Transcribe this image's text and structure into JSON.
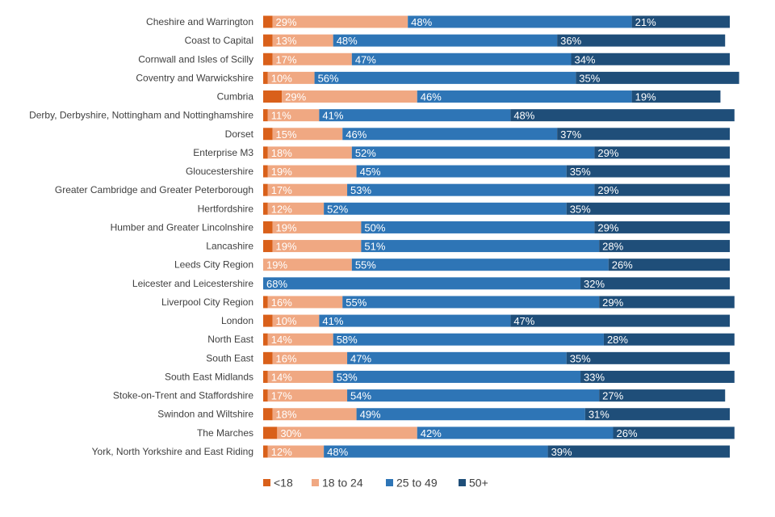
{
  "chart_data": {
    "type": "bar",
    "orientation": "horizontal",
    "stacked": "percent",
    "title": "",
    "xlabel": "",
    "ylabel": "",
    "xlim": [
      0,
      100
    ],
    "grid": false,
    "legend_position": "bottom",
    "categories": [
      "Cheshire and Warrington",
      "Coast to Capital",
      "Cornwall and Isles of Scilly",
      "Coventry and Warwickshire",
      "Cumbria",
      "Derby, Derbyshire, Nottingham and Nottinghamshire",
      "Dorset",
      "Enterprise M3",
      "Gloucestershire",
      "Greater Cambridge and Greater Peterborough",
      "Hertfordshire",
      "Humber and Greater Lincolnshire",
      "Lancashire",
      "Leeds City Region",
      "Leicester and Leicestershire",
      "Liverpool City Region",
      "London",
      "North East",
      "South East",
      "South East Midlands",
      "Stoke-on-Trent and Staffordshire",
      "Swindon and Wiltshire",
      "The Marches",
      "York, North Yorkshire and East Riding"
    ],
    "series": [
      {
        "name": "<18",
        "color": "#d9601a",
        "values": [
          2,
          2,
          2,
          1,
          4,
          1,
          2,
          1,
          1,
          1,
          1,
          2,
          2,
          0,
          0,
          1,
          2,
          1,
          2,
          1,
          1,
          2,
          3,
          1
        ],
        "labels": [
          "",
          "",
          "",
          "",
          "",
          "",
          "",
          "",
          "",
          "",
          "",
          "",
          "",
          "",
          "",
          "",
          "",
          "",
          "",
          "",
          "",
          "",
          "",
          ""
        ]
      },
      {
        "name": "18 to 24",
        "color": "#f0a882",
        "values": [
          29,
          13,
          17,
          10,
          29,
          11,
          15,
          18,
          19,
          17,
          12,
          19,
          19,
          19,
          0,
          16,
          10,
          14,
          16,
          14,
          17,
          18,
          30,
          12
        ],
        "labels": [
          "29%",
          "13%",
          "17%",
          "10%",
          "29%",
          "11%",
          "15%",
          "18%",
          "19%",
          "17%",
          "12%",
          "19%",
          "19%",
          "19%",
          "",
          "16%",
          "10%",
          "14%",
          "16%",
          "14%",
          "17%",
          "18%",
          "30%",
          "12%"
        ]
      },
      {
        "name": "25 to 49",
        "color": "#2e75b6",
        "values": [
          48,
          48,
          47,
          56,
          46,
          41,
          46,
          52,
          45,
          53,
          52,
          50,
          51,
          55,
          68,
          55,
          41,
          58,
          47,
          53,
          54,
          49,
          42,
          48
        ],
        "labels": [
          "48%",
          "48%",
          "47%",
          "56%",
          "46%",
          "41%",
          "46%",
          "52%",
          "45%",
          "53%",
          "52%",
          "50%",
          "51%",
          "55%",
          "68%",
          "55%",
          "41%",
          "58%",
          "47%",
          "53%",
          "54%",
          "49%",
          "42%",
          "48%"
        ]
      },
      {
        "name": "50+",
        "color": "#1f4e79",
        "values": [
          21,
          36,
          34,
          35,
          19,
          48,
          37,
          29,
          35,
          29,
          35,
          29,
          28,
          26,
          32,
          29,
          47,
          28,
          35,
          33,
          27,
          31,
          26,
          39
        ],
        "labels": [
          "21%",
          "36%",
          "34%",
          "35%",
          "19%",
          "48%",
          "37%",
          "29%",
          "35%",
          "29%",
          "35%",
          "29%",
          "28%",
          "26%",
          "32%",
          "29%",
          "47%",
          "28%",
          "35%",
          "33%",
          "27%",
          "31%",
          "26%",
          "39%"
        ]
      }
    ]
  }
}
